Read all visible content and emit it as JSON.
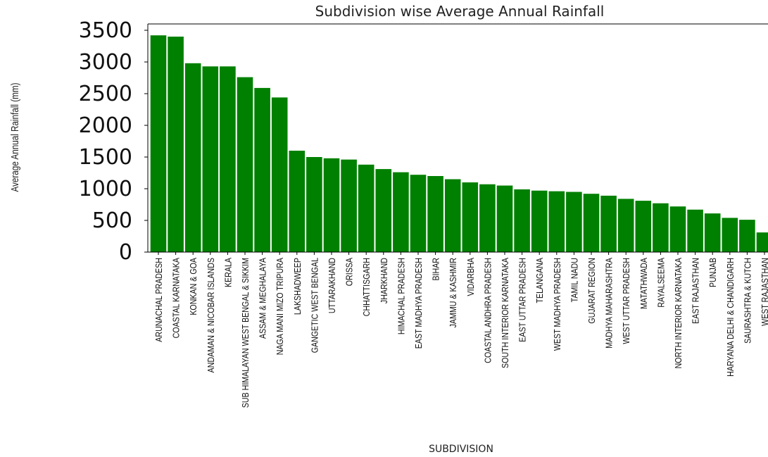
{
  "chart_data": {
    "type": "bar",
    "title": "Subdivision wise Average Annual Rainfall",
    "xlabel": "SUBDIVISION",
    "ylabel": "Average Annual Rainfall (mm)",
    "ylim": [
      0,
      3600
    ],
    "yticks": [
      "0",
      "500",
      "1000",
      "1500",
      "2000",
      "2500",
      "3000",
      "3500"
    ],
    "bar_color": "#008000",
    "grid": false,
    "categories": [
      "ARUNACHAL PRADESH",
      "COASTAL KARNATAKA",
      "KONKAN & GOA",
      "ANDAMAN & NICOBAR ISLANDS",
      "KERALA",
      "SUB HIMALAYAN WEST BENGAL & SIKKIM",
      "ASSAM & MEGHALAYA",
      "NAGA MANI MIZO TRIPURA",
      "LAKSHADWEEP",
      "GANGETIC WEST BENGAL",
      "UTTARAKHAND",
      "ORISSA",
      "CHHATTISGARH",
      "JHARKHAND",
      "HIMACHAL PRADESH",
      "EAST MADHYA PRADESH",
      "BIHAR",
      "JAMMU & KASHMIR",
      "VIDARBHA",
      "COASTAL ANDHRA PRADESH",
      "SOUTH INTERIOR KARNATAKA",
      "EAST UTTAR PRADESH",
      "TELANGANA",
      "WEST MADHYA PRADESH",
      "TAMIL NADU",
      "GUJARAT REGION",
      "MADHYA MAHARASHTRA",
      "WEST UTTAR PRADESH",
      "MATATHWADA",
      "RAYALSEEMA",
      "NORTH INTERIOR KARNATAKA",
      "EAST RAJASTHAN",
      "PUNJAB",
      "HARYANA DELHI & CHANDIGARH",
      "SAURASHTRA & KUTCH",
      "WEST RAJASTHAN"
    ],
    "values": [
      3420,
      3400,
      2980,
      2930,
      2930,
      2760,
      2590,
      2440,
      1600,
      1500,
      1480,
      1460,
      1380,
      1310,
      1260,
      1220,
      1200,
      1150,
      1100,
      1070,
      1050,
      990,
      970,
      960,
      950,
      920,
      890,
      840,
      810,
      770,
      720,
      670,
      610,
      540,
      510,
      310
    ]
  }
}
